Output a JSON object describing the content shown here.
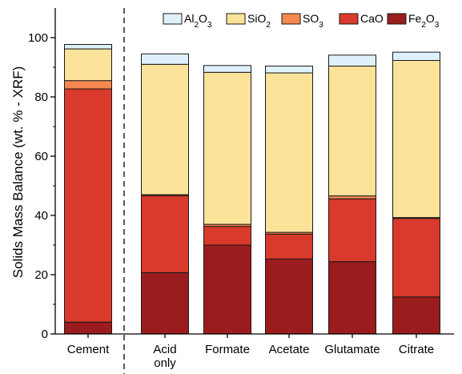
{
  "chart_data": {
    "type": "bar",
    "stacked": true,
    "ylabel": "Solids Mass Balance (wt. % - XRF)",
    "xlabel": "",
    "ylim": [
      0,
      110
    ],
    "yticks": [
      0,
      20,
      40,
      60,
      80,
      100
    ],
    "categories": [
      {
        "lines": [
          "Cement"
        ]
      },
      {
        "lines": [
          "Acid",
          "only"
        ]
      },
      {
        "lines": [
          "Formate"
        ]
      },
      {
        "lines": [
          "Acetate"
        ]
      },
      {
        "lines": [
          "Glutamate"
        ]
      },
      {
        "lines": [
          "Citrate"
        ]
      }
    ],
    "stack_order": [
      "Fe2O3",
      "CaO",
      "SO3",
      "SiO2",
      "Al2O3"
    ],
    "legend_order": [
      "Al2O3",
      "SiO2",
      "SO3",
      "CaO",
      "Fe2O3"
    ],
    "legend_placement": "top-right",
    "separator_after_category": 0,
    "series": {
      "Fe2O3": {
        "base": "Fe",
        "sub": "2",
        "base2": "O",
        "sub2": "3",
        "color": "#9b1c1c",
        "values": [
          4,
          20.7,
          30,
          25.3,
          24.4,
          12.5
        ]
      },
      "CaO": {
        "base": "CaO",
        "sub": "",
        "base2": "",
        "sub2": "",
        "color": "#d93a2b",
        "values": [
          78.7,
          26,
          6.3,
          8.4,
          21.2,
          26.5
        ]
      },
      "SO3": {
        "base": "SO",
        "sub": "3",
        "base2": "",
        "sub2": "",
        "color": "#f4884f",
        "values": [
          2.8,
          0.3,
          0.7,
          0.6,
          1,
          0.3
        ]
      },
      "SiO2": {
        "base": "SiO",
        "sub": "2",
        "base2": "",
        "sub2": "",
        "color": "#fde29a",
        "values": [
          10.7,
          44,
          51.3,
          53.8,
          43.8,
          53
        ]
      },
      "Al2O3": {
        "base": "Al",
        "sub": "2",
        "base2": "O",
        "sub2": "3",
        "color": "#dff1fb",
        "values": [
          1.5,
          3.5,
          2.3,
          2.3,
          3.7,
          2.8
        ]
      }
    }
  }
}
